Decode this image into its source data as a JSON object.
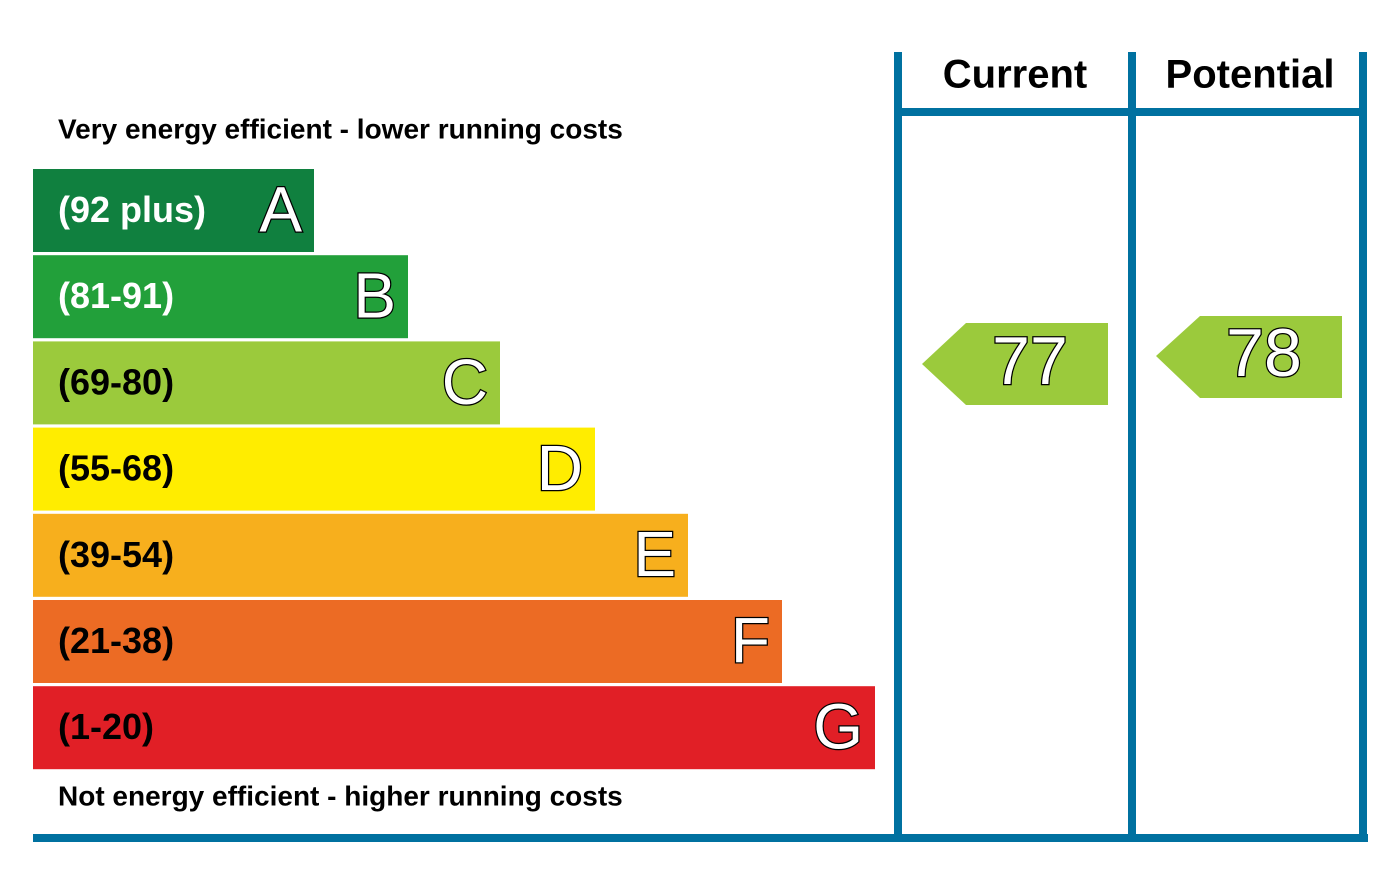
{
  "top_label": "Very energy efficient - lower running costs",
  "bottom_label": "Not energy efficient - higher running costs",
  "bands": [
    {
      "range": "(92 plus)",
      "letter": "A",
      "color": "#10803f"
    },
    {
      "range": "(81-91)",
      "letter": "B",
      "color": "#22a03a"
    },
    {
      "range": "(69-80)",
      "letter": "C",
      "color": "#9bca3c"
    },
    {
      "range": "(55-68)",
      "letter": "D",
      "color": "#ffed00"
    },
    {
      "range": "(39-54)",
      "letter": "E",
      "color": "#f7af1d"
    },
    {
      "range": "(21-38)",
      "letter": "F",
      "color": "#ec6b24"
    },
    {
      "range": "(1-20)",
      "letter": "G",
      "color": "#e11f26"
    }
  ],
  "current": {
    "header": "Current",
    "value": 77
  },
  "potential": {
    "header": "Potential",
    "value": 78
  }
}
